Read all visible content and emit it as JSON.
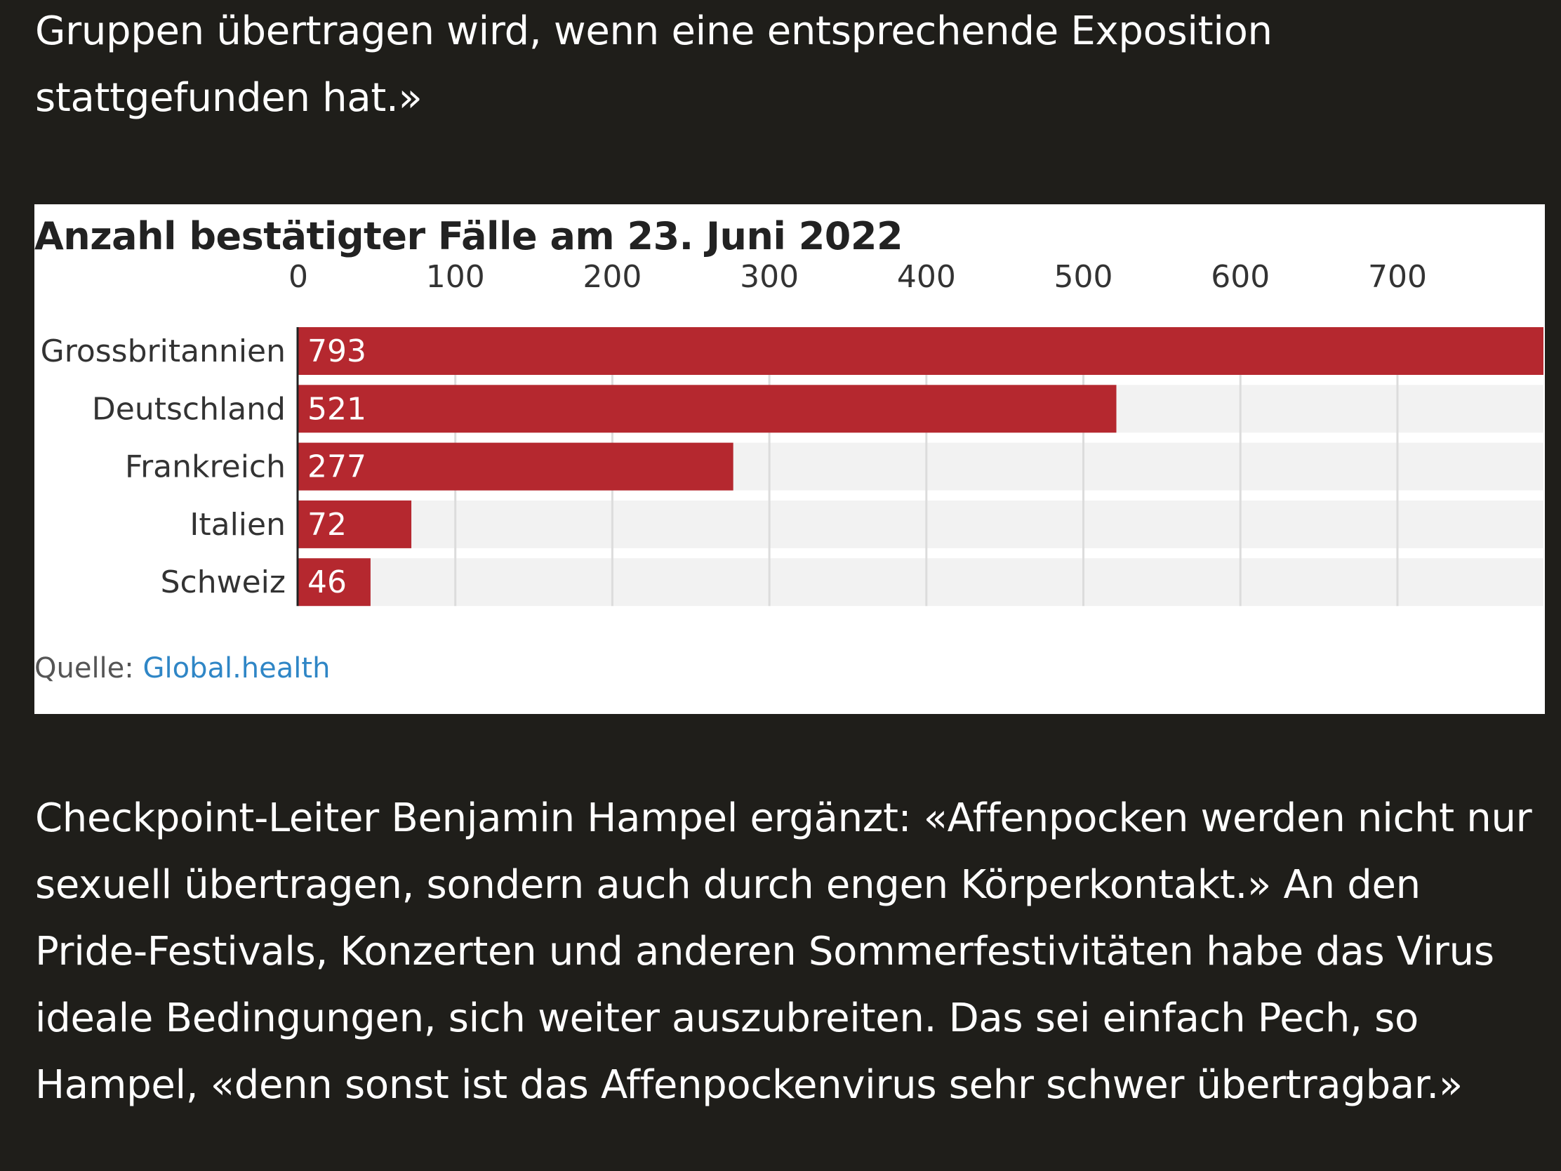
{
  "article": {
    "para_top": "Gruppen übertragen wird, wenn eine entsprechende Exposition stattgefunden hat.»",
    "para_bottom": "Checkpoint-Leiter Benjamin Hampel ergänzt: «Affenpocken werden nicht nur sexuell übertragen, sondern auch durch engen Körperkontakt.» An den Pride-Festivals, Konzerten und anderen Sommerfestivitäten habe das Virus ideale Bedingungen, sich weiter auszubreiten. Das sei einfach Pech, so Hampel, «denn sonst ist das Affenpockenvirus sehr schwer übertragbar.»"
  },
  "chart_data": {
    "type": "bar",
    "orientation": "horizontal",
    "title": "Anzahl bestätigter Fälle am 23. Juni 2022",
    "categories": [
      "Grossbritannien",
      "Deutschland",
      "Frankreich",
      "Italien",
      "Schweiz"
    ],
    "values": [
      793,
      521,
      277,
      72,
      46
    ],
    "value_labels": [
      "793",
      "521",
      "277",
      "72",
      "46"
    ],
    "x_ticks": [
      0,
      100,
      200,
      300,
      400,
      500,
      600,
      700
    ],
    "x_tick_labels": [
      "0",
      "100",
      "200",
      "300",
      "400",
      "500",
      "600",
      "700"
    ],
    "xlim": [
      0,
      793
    ],
    "xlabel": "",
    "ylabel": "",
    "grid": true,
    "bar_color": "#b5282f",
    "track_color": "#f2f2f2"
  },
  "source": {
    "label": "Quelle:",
    "link_text": "Global.health"
  }
}
